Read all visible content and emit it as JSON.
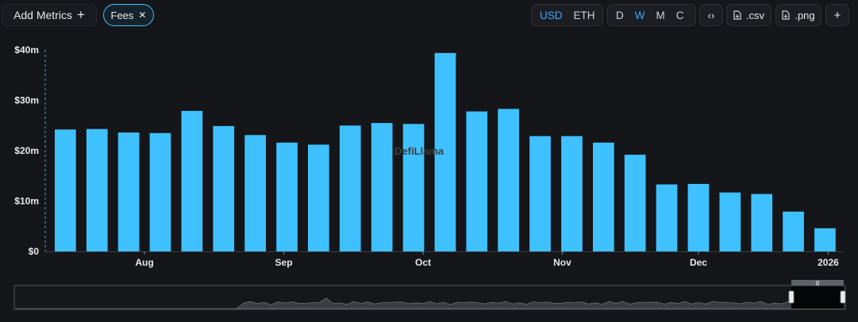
{
  "toolbar": {
    "add_metrics_label": "Add Metrics",
    "add_icon": "+",
    "fees_chip_label": "Fees",
    "close_icon": "✕",
    "currency_options": [
      "USD",
      "ETH"
    ],
    "currency_selected": "USD",
    "period_options": [
      "D",
      "W",
      "M",
      "C"
    ],
    "period_selected": "W",
    "embed_icon": "‹›",
    "csv_label": ".csv",
    "png_label": ".png",
    "more_icon": "+"
  },
  "watermark": "DefiLlama",
  "colors": {
    "bar": "#3fc1ff",
    "accent": "#3fa9ff",
    "background": "#141619"
  },
  "chart_data": {
    "type": "bar",
    "title": "",
    "xlabel": "",
    "ylabel": "",
    "ylim": [
      0,
      40
    ],
    "y_unit": "m",
    "y_ticks": [
      "$0",
      "$10m",
      "$20m",
      "$30m",
      "$40m"
    ],
    "x_tick_labels": [
      "Aug",
      "Sep",
      "Oct",
      "Nov",
      "Dec",
      "2026"
    ],
    "series": [
      {
        "name": "Fees",
        "values": [
          24.2,
          24.3,
          23.6,
          23.5,
          27.9,
          24.9,
          23.1,
          21.6,
          21.2,
          25.0,
          25.5,
          25.3,
          39.4,
          27.8,
          28.3,
          22.9,
          22.9,
          21.6,
          19.2,
          13.3,
          13.4,
          11.7,
          11.4,
          7.9,
          4.6
        ]
      }
    ]
  }
}
